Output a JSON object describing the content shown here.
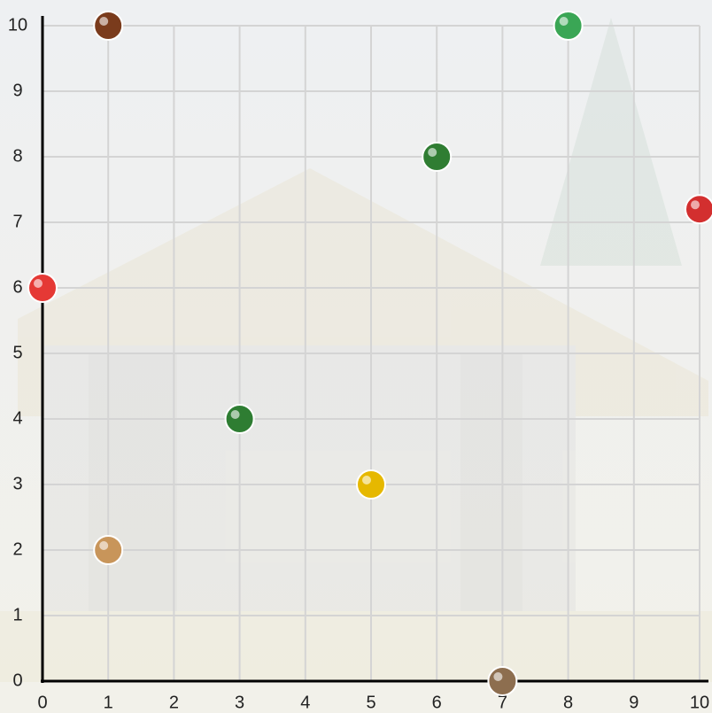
{
  "chart_data": {
    "type": "scatter",
    "x": [
      1,
      8,
      6,
      10,
      0,
      3,
      5,
      1,
      7
    ],
    "y": [
      10,
      10,
      8,
      7.2,
      6,
      4,
      3,
      2,
      0
    ],
    "colors": [
      "#7a3b1c",
      "#3aa655",
      "#2f7d32",
      "#d32f2f",
      "#e53935",
      "#2e7d32",
      "#e6b800",
      "#c8955a",
      "#8d6e4f"
    ],
    "xlim": [
      0,
      10
    ],
    "ylim": [
      0,
      10
    ],
    "xticks": [
      0,
      1,
      2,
      3,
      4,
      5,
      6,
      7,
      8,
      9,
      10
    ],
    "yticks": [
      0,
      1,
      2,
      3,
      4,
      5,
      6,
      7,
      8,
      9,
      10
    ],
    "grid": true
  }
}
